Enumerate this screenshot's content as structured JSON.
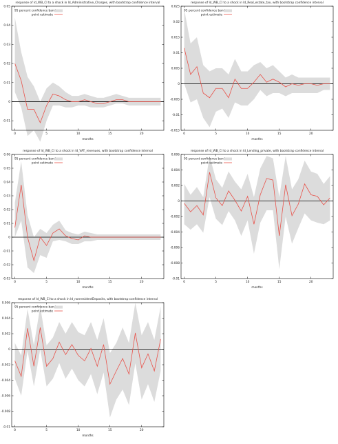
{
  "colors": {
    "band": "#dcdcdc",
    "point": "#e8524a",
    "axis": "#000000",
    "zero": "#000000"
  },
  "legend": {
    "band": "95 percent confidence band",
    "point": "point estimate"
  },
  "chart_data": [
    {
      "type": "line",
      "title": "response of ld_WB_CI to a shock in ld_Administrative_Charges, with bootstrap confidence interval",
      "xlabel": "months",
      "ylabel": "",
      "xlim": [
        -0.5,
        23.5
      ],
      "ylim": [
        -0.015,
        0.05
      ],
      "yticks": [
        -0.01,
        0,
        0.01,
        0.02,
        0.03,
        0.04,
        0.05
      ],
      "ytick_labels": [
        "-0.01",
        "0",
        "0.01",
        "0.02",
        "0.03",
        "0.04",
        "0.05"
      ],
      "xticks": [
        0,
        5,
        10,
        15,
        20
      ],
      "x": [
        0,
        1,
        2,
        3,
        4,
        5,
        6,
        7,
        8,
        9,
        10,
        11,
        12,
        13,
        14,
        15,
        16,
        17,
        18,
        19,
        20,
        21,
        22,
        23
      ],
      "series": [
        {
          "name": "point estimate",
          "values": [
            0.02,
            0.011,
            -0.004,
            -0.004,
            -0.011,
            -0.002,
            0.004,
            0.003,
            0.001,
            0.0,
            0.0,
            0.001,
            0.0,
            -0.001,
            -0.001,
            0.0,
            0.001,
            0.001,
            0.0,
            0.0,
            0.0,
            0.0,
            0.0,
            0.0
          ]
        },
        {
          "name": "95 percent confidence band",
          "lower": [
            0.005,
            -0.003,
            -0.018,
            -0.015,
            -0.021,
            -0.01,
            -0.002,
            -0.002,
            -0.003,
            -0.003,
            -0.002,
            -0.002,
            -0.003,
            -0.003,
            -0.003,
            -0.002,
            -0.001,
            -0.001,
            -0.002,
            -0.002,
            -0.002,
            -0.002,
            -0.002,
            -0.002
          ],
          "upper": [
            0.044,
            0.026,
            0.013,
            0.008,
            0.0,
            0.007,
            0.01,
            0.008,
            0.005,
            0.003,
            0.003,
            0.004,
            0.003,
            0.002,
            0.002,
            0.003,
            0.004,
            0.003,
            0.002,
            0.002,
            0.002,
            0.002,
            0.002,
            0.002
          ]
        }
      ]
    },
    {
      "type": "line",
      "title": "response of ld_WB_CI to a shock in ld_Real_estate_tax, with bootstrap confidence interval",
      "xlabel": "months",
      "ylabel": "",
      "xlim": [
        -0.5,
        23.5
      ],
      "ylim": [
        -0.015,
        0.025
      ],
      "yticks": [
        -0.015,
        -0.01,
        -0.005,
        0,
        0.005,
        0.01,
        0.015,
        0.02,
        0.025
      ],
      "ytick_labels": [
        "-0.015",
        "-0.01",
        "-0.005",
        "0",
        "0.005",
        "0.01",
        "0.015",
        "0.02",
        "0.025"
      ],
      "xticks": [
        0,
        5,
        10,
        15,
        20
      ],
      "x": [
        0,
        1,
        2,
        3,
        4,
        5,
        6,
        7,
        8,
        9,
        10,
        11,
        12,
        13,
        14,
        15,
        16,
        17,
        18,
        19,
        20,
        21,
        22,
        23
      ],
      "series": [
        {
          "name": "point estimate",
          "values": [
            0.0115,
            0.003,
            0.0055,
            -0.003,
            -0.0045,
            -0.0015,
            -0.0015,
            -0.0045,
            0.0015,
            -0.0015,
            -0.0015,
            0.0005,
            0.003,
            0.0005,
            0.0015,
            0.0005,
            -0.001,
            0.0,
            -0.0005,
            0.0,
            0.0,
            -0.0005,
            0.0,
            0.0
          ]
        },
        {
          "name": "95 percent confidence band",
          "lower": [
            0.0,
            -0.006,
            -0.005,
            -0.011,
            -0.014,
            -0.009,
            -0.008,
            -0.011,
            -0.006,
            -0.007,
            -0.007,
            -0.005,
            -0.002,
            -0.004,
            -0.003,
            -0.003,
            -0.004,
            -0.003,
            -0.003,
            -0.003,
            -0.003,
            -0.003,
            -0.002,
            -0.002
          ],
          "upper": [
            0.024,
            0.013,
            0.015,
            0.006,
            0.004,
            0.005,
            0.005,
            0.003,
            0.008,
            0.004,
            0.004,
            0.006,
            0.007,
            0.005,
            0.006,
            0.004,
            0.002,
            0.003,
            0.002,
            0.002,
            0.002,
            0.002,
            0.002,
            0.002
          ]
        }
      ]
    },
    {
      "type": "line",
      "title": "response of ld_WB_CI to a shock in ld_VAT_revenues, with bootstrap confidence interval",
      "xlabel": "months",
      "ylabel": "",
      "xlim": [
        -0.5,
        23.5
      ],
      "ylim": [
        -0.03,
        0.06
      ],
      "yticks": [
        -0.03,
        -0.02,
        -0.01,
        0,
        0.01,
        0.02,
        0.03,
        0.04,
        0.05,
        0.06
      ],
      "ytick_labels": [
        "-0.03",
        "-0.02",
        "-0.01",
        "0",
        "0.01",
        "0.02",
        "0.03",
        "0.04",
        "0.05",
        "0.06"
      ],
      "xticks": [
        0,
        5,
        10,
        15,
        20
      ],
      "x": [
        0,
        1,
        2,
        3,
        4,
        5,
        6,
        7,
        8,
        9,
        10,
        11,
        12,
        13,
        14,
        15,
        16,
        17,
        18,
        19,
        20,
        21,
        22,
        23
      ],
      "series": [
        {
          "name": "point estimate",
          "values": [
            0.007,
            0.038,
            0.0,
            -0.017,
            0.0,
            -0.006,
            0.003,
            0.006,
            0.001,
            -0.001,
            -0.002,
            0.001,
            0.0,
            0.0,
            0.0,
            0.0,
            0.0,
            0.0,
            0.0,
            0.0,
            0.0,
            0.0,
            0.0,
            0.0
          ]
        },
        {
          "name": "95 percent confidence band",
          "lower": [
            0.0,
            0.012,
            -0.022,
            -0.026,
            -0.013,
            -0.015,
            -0.003,
            -0.002,
            -0.003,
            -0.005,
            -0.005,
            -0.003,
            -0.003,
            -0.002,
            -0.002,
            -0.002,
            -0.002,
            -0.002,
            -0.002,
            -0.002,
            -0.002,
            -0.002,
            -0.002,
            -0.002
          ],
          "upper": [
            0.025,
            0.055,
            0.016,
            0.0,
            0.006,
            0.003,
            0.009,
            0.012,
            0.005,
            0.003,
            0.002,
            0.004,
            0.003,
            0.002,
            0.002,
            0.002,
            0.002,
            0.002,
            0.002,
            0.002,
            0.002,
            0.002,
            0.002,
            0.002
          ]
        }
      ]
    },
    {
      "type": "line",
      "title": "response of ld_WB_CI to a shock in ld_Lending_private, with bootstrap confidence interval",
      "xlabel": "months",
      "ylabel": "",
      "xlim": [
        -0.5,
        23.5
      ],
      "ylim": [
        -0.01,
        0.006
      ],
      "yticks": [
        -0.01,
        -0.008,
        -0.006,
        -0.004,
        -0.002,
        0,
        0.002,
        0.004,
        0.006
      ],
      "ytick_labels": [
        "-0.01",
        "-0.008",
        "-0.006",
        "-0.004",
        "-0.002",
        "0",
        "0.002",
        "0.004",
        "0.006"
      ],
      "xticks": [
        0,
        5,
        10,
        15,
        20
      ],
      "x": [
        0,
        1,
        2,
        3,
        4,
        5,
        6,
        7,
        8,
        9,
        10,
        11,
        12,
        13,
        14,
        15,
        16,
        17,
        18,
        19,
        20,
        21,
        22,
        23
      ],
      "series": [
        {
          "name": "point estimate",
          "values": [
            -0.0003,
            -0.0014,
            -0.0006,
            -0.0018,
            0.0037,
            0.0004,
            -0.0006,
            0.0013,
            0.0001,
            -0.0013,
            0.0006,
            -0.003,
            0.0008,
            0.0029,
            0.0027,
            -0.0045,
            0.0021,
            -0.0019,
            -0.0004,
            0.0022,
            0.0008,
            0.0006,
            -0.0005,
            0.0004
          ]
        },
        {
          "name": "95 percent confidence band",
          "lower": [
            -0.003,
            -0.0037,
            -0.003,
            -0.0041,
            0.0005,
            -0.0023,
            -0.0031,
            -0.0013,
            -0.0025,
            -0.0045,
            -0.0025,
            -0.0068,
            -0.0028,
            -0.0012,
            -0.0012,
            -0.0088,
            -0.002,
            -0.0055,
            -0.0035,
            -0.0016,
            -0.0025,
            -0.0028,
            -0.003,
            -0.0025
          ],
          "upper": [
            0.0022,
            0.0008,
            0.0018,
            0.0005,
            0.0058,
            0.0028,
            0.0017,
            0.0038,
            0.0025,
            0.0015,
            0.0035,
            0.0005,
            0.0042,
            0.0058,
            0.0055,
            0.0005,
            0.0058,
            0.0015,
            0.0028,
            0.0052,
            0.0038,
            0.0035,
            0.0022,
            0.0032
          ]
        }
      ]
    },
    {
      "type": "line",
      "title": "response of ld_WB_CI to a shock in ld_nonresidentDeposits, with bootstrap confidence interval",
      "xlabel": "months",
      "ylabel": "",
      "xlim": [
        -0.5,
        23.5
      ],
      "ylim": [
        -0.01,
        0.006
      ],
      "yticks": [
        -0.01,
        -0.008,
        -0.006,
        -0.004,
        -0.002,
        0,
        0.002,
        0.004,
        0.006
      ],
      "ytick_labels": [
        "-0.01",
        "-0.008",
        "-0.006",
        "-0.004",
        "-0.002",
        "0",
        "0.002",
        "0.004",
        "0.006"
      ],
      "xticks": [
        0,
        5,
        10,
        15,
        20
      ],
      "x": [
        0,
        1,
        2,
        3,
        4,
        5,
        6,
        7,
        8,
        9,
        10,
        11,
        12,
        13,
        14,
        15,
        16,
        17,
        18,
        19,
        20,
        21,
        22,
        23
      ],
      "series": [
        {
          "name": "point estimate",
          "values": [
            -0.0015,
            -0.0035,
            0.0027,
            -0.0022,
            0.0028,
            -0.0022,
            -0.0012,
            0.0009,
            -0.0007,
            0.0006,
            -0.0008,
            -0.0015,
            0.0001,
            -0.0022,
            0.0006,
            -0.0045,
            -0.0028,
            -0.0012,
            -0.0032,
            0.0021,
            -0.0024,
            -0.0006,
            -0.0028,
            0.0013
          ]
        },
        {
          "name": "95 percent confidence band",
          "lower": [
            -0.0038,
            -0.006,
            -0.0002,
            -0.0048,
            0.0,
            -0.0048,
            -0.0038,
            -0.0018,
            -0.0038,
            -0.0025,
            -0.004,
            -0.0048,
            -0.0032,
            -0.0058,
            -0.003,
            -0.0088,
            -0.0065,
            -0.0052,
            -0.0072,
            -0.0018,
            -0.0065,
            -0.0045,
            -0.0068,
            -0.0028
          ],
          "upper": [
            0.0008,
            -0.0008,
            0.0052,
            0.0005,
            0.0055,
            0.0005,
            0.0015,
            0.0035,
            0.002,
            0.0035,
            0.0022,
            0.0018,
            0.0035,
            0.0012,
            0.004,
            -0.0005,
            0.0008,
            0.0028,
            0.0008,
            0.006,
            0.0018,
            0.0035,
            0.0012,
            0.0055
          ]
        }
      ]
    }
  ]
}
